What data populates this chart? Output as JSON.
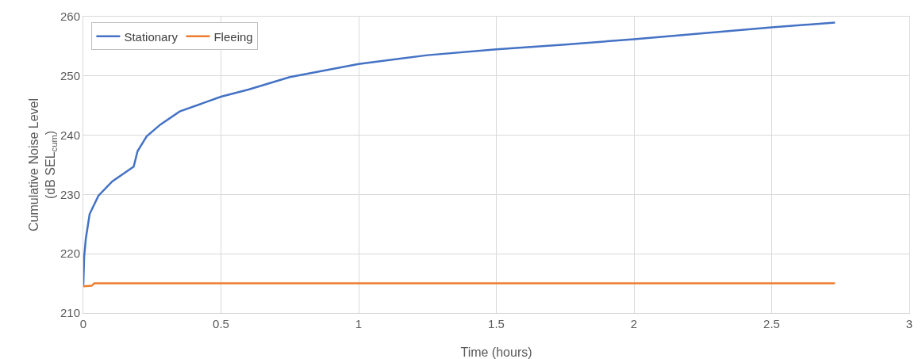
{
  "chart_data": {
    "type": "line",
    "xlabel": "Time (hours)",
    "ylabel": "Cumulative Noise Level\n(dB SEL$_{cum}$)",
    "xlim": [
      0,
      3
    ],
    "xticks": [
      0,
      0.5,
      1,
      1.5,
      2,
      2.5,
      3
    ],
    "ylim": [
      210,
      260
    ],
    "yticks": [
      210,
      220,
      230,
      240,
      250,
      260
    ],
    "grid": true,
    "legend": "top left",
    "marker": "none",
    "line_style": "solid",
    "series": [
      {
        "name": "Stationary",
        "color": "#4472c4",
        "x": [
          0,
          0.003,
          0.009,
          0.023,
          0.055,
          0.105,
          0.183,
          0.197,
          0.23,
          0.28,
          0.35,
          0.5,
          0.6,
          0.75,
          1,
          1.25,
          1.5,
          1.75,
          2,
          2.25,
          2.5,
          2.73
        ],
        "values": [
          214.7,
          219.4,
          222.5,
          226.7,
          229.8,
          232.2,
          234.7,
          237.3,
          239.8,
          241.8,
          244,
          246.5,
          247.7,
          249.8,
          252,
          253.5,
          254.5,
          255.3,
          256.2,
          257.2,
          258.2,
          259
        ]
      },
      {
        "name": "Fleeing",
        "color": "#ed7d31",
        "x": [
          0,
          0.03,
          0.04,
          2.73
        ],
        "values": [
          214.5,
          214.6,
          215,
          215
        ]
      }
    ]
  }
}
